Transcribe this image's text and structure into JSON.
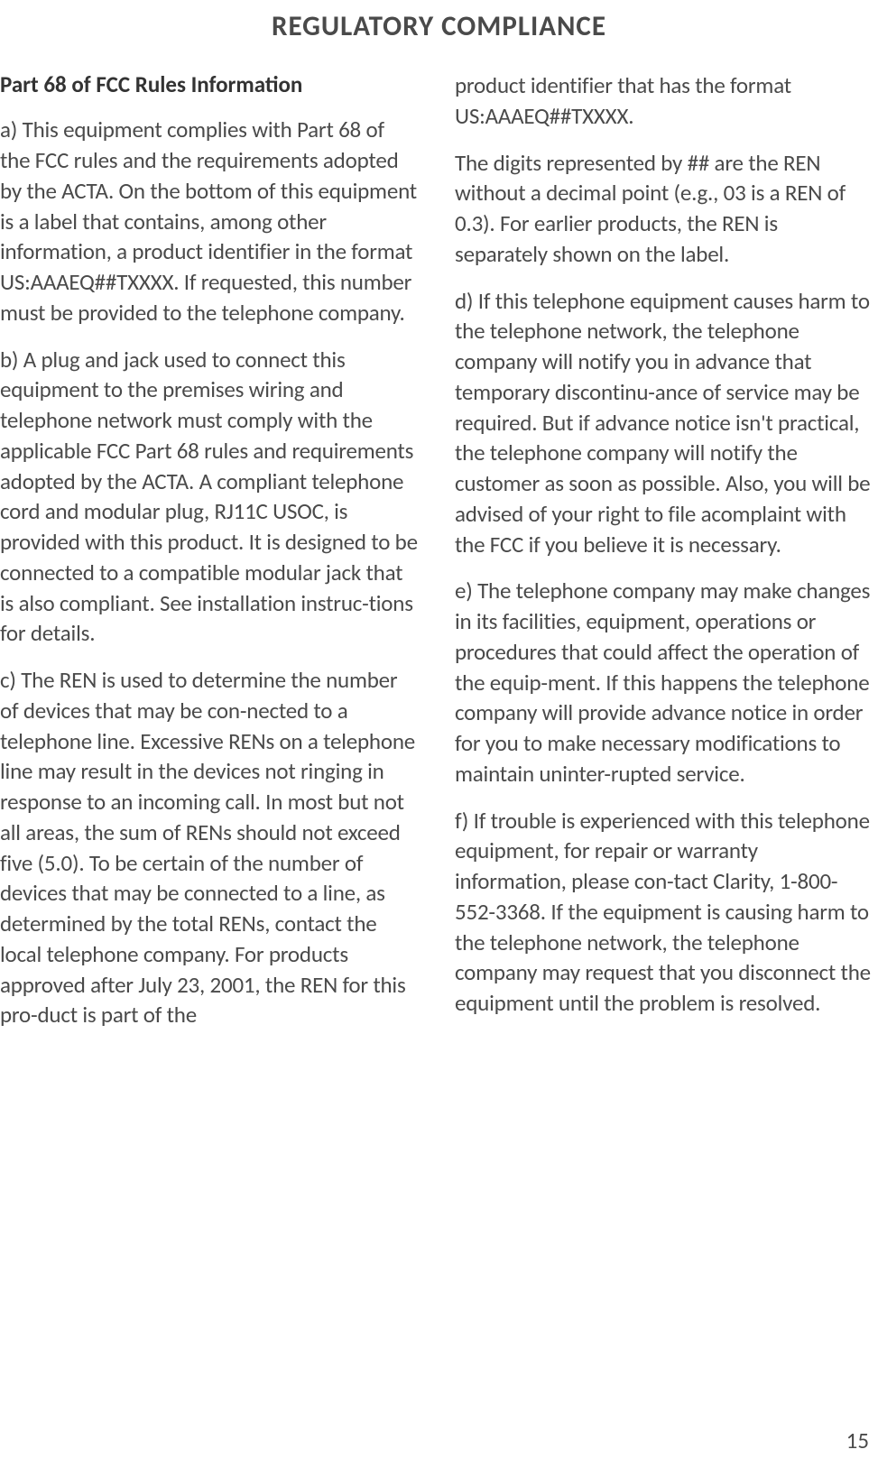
{
  "title": "REGULATORY COMPLIANCE",
  "section_heading": "Part 68 of FCC Rules Information",
  "left_column": {
    "p1": "a) This equipment complies with Part 68 of the FCC rules and the requirements adopted by the ACTA. On the bottom of this equipment is a label that contains, among other information, a product identifier in the format US:AAAEQ##TXXXX. If requested, this number must be provided to the telephone company.",
    "p2": "b) A plug and jack used to connect this equipment to the premises wiring and telephone network must comply with the applicable FCC Part 68 rules and requirements adopted by the ACTA. A compliant telephone cord and modular plug, RJ11C USOC, is provided with this product. It is designed to be connected to a compatible modular jack that is also compliant. See installation instruc-tions for details.",
    "p3": "c) The REN is used to determine the number of devices that may be con-nected to a telephone line. Excessive RENs on a telephone line may result in the devices not ringing in response to an incoming call. In most but not all areas, the sum of RENs should not exceed five (5.0). To be certain of the number of devices that may be connected to a line, as determined by the total RENs, contact the local telephone company. For products approved after July 23, 2001, the REN for this pro-duct is part of the"
  },
  "right_column": {
    "p1": "product identifier that has the format US:AAAEQ##TXXXX.",
    "p2": "The digits represented by ## are the REN without a decimal point (e.g., 03 is a REN of 0.3). For earlier products, the REN is separately shown on the label.",
    "p3": "d) If this telephone equipment causes harm to the telephone network, the telephone company will notify you in advance that temporary discontinu-ance of service may be required. But if advance notice isn't practical, the telephone company will notify the customer as soon as possible. Also, you will be advised of your right to file acomplaint with the FCC if you believe it is necessary.",
    "p4": "e) The telephone company may make changes in its facilities, equipment, operations or procedures that could affect the operation of the equip-ment. If this happens the telephone company will provide advance notice in order for you to make necessary modifications to maintain uninter-rupted service.",
    "p5": "f) If trouble is experienced with this telephone equipment, for repair or warranty information, please con-tact Clarity, 1-800-552-3368. If the equipment is causing harm to the telephone network, the telephone company may request that you disconnect the equipment until the problem is resolved."
  },
  "page_number": "15",
  "colors": {
    "background": "#ffffff",
    "title_color": "#4a4a4a",
    "text_color": "#4a4a4a",
    "heading_color": "#333333"
  },
  "typography": {
    "title_fontsize": 31,
    "heading_fontsize": 25,
    "body_fontsize": 25,
    "page_number_fontsize": 25
  }
}
